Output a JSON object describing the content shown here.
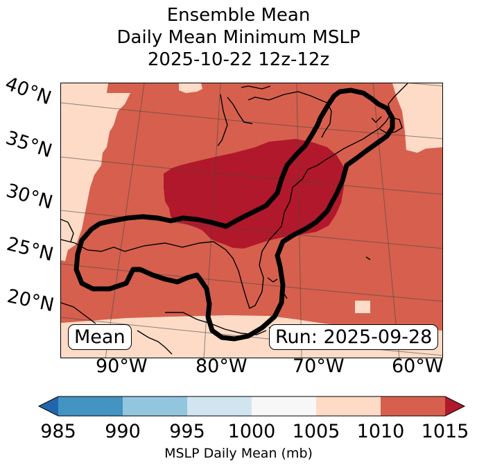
{
  "title": {
    "line1": "Ensemble Mean",
    "line2": "Daily Mean Minimum MSLP",
    "line3": "2025-10-22 12z-12z"
  },
  "map": {
    "lat_labels": [
      "40°N",
      "35°N",
      "30°N",
      "25°N",
      "20°N"
    ],
    "lon_labels": [
      "90°W",
      "80°W",
      "70°W",
      "60°W"
    ],
    "left_box_label": "Mean",
    "right_box_label": "Run: 2025-09-28",
    "fill_colors": {
      "1005-1010": "#fddbc7",
      "1010-1015": "#d6604d",
      "above-1015": "#b2182b"
    },
    "outline_color": "#000000"
  },
  "colorbar": {
    "label": "MSLP Daily Mean (mb)",
    "ticks": [
      "985",
      "990",
      "995",
      "1000",
      "1005",
      "1010",
      "1015"
    ],
    "bins": [
      {
        "range": "<985",
        "color": "#2166ac"
      },
      {
        "range": "985-990",
        "color": "#4393c3"
      },
      {
        "range": "990-995",
        "color": "#92c5de"
      },
      {
        "range": "995-1000",
        "color": "#d1e5f0"
      },
      {
        "range": "1000-1005",
        "color": "#f7f7f7"
      },
      {
        "range": "1005-1010",
        "color": "#fddbc7"
      },
      {
        "range": "1010-1015",
        "color": "#d6604d"
      },
      {
        "range": ">1015",
        "color": "#b2182b"
      }
    ]
  }
}
